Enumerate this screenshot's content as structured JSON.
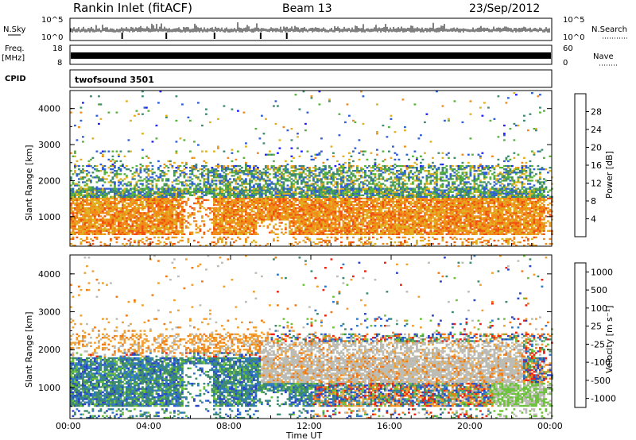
{
  "header": {
    "station": "Rankin Inlet (fitACF)",
    "beam": "Beam 13",
    "date": "23/Sep/2012"
  },
  "top_strips": {
    "nsky_label": "N.Sky",
    "nsky_ticks": [
      "10^5",
      "10^0"
    ],
    "nsearch_label": "N.Search",
    "freq_label": "Freq.",
    "freq_unit": "[MHz]",
    "freq_ticks": [
      "18",
      "8"
    ],
    "nave_label": "Nave",
    "nave_ticks": [
      "60",
      "0"
    ],
    "cpid_label": "CPID",
    "cpid_value": "twofsound 3501"
  },
  "colors": {
    "power": [
      "#1f1fff",
      "#2e5fd6",
      "#3e8a6e",
      "#56b23a",
      "#e0b020",
      "#f08a18",
      "#f05010",
      "#ee1a10"
    ],
    "velocity": [
      "#2a45c8",
      "#2f78c8",
      "#3e8a6e",
      "#6cc23a",
      "#bcbcb4",
      "#f0a030",
      "#f07a18",
      "#ee2010"
    ]
  },
  "chart_data": [
    {
      "type": "heatmap",
      "name": "power-panel",
      "ylabel": "Slant Range [km]",
      "xlabel": "Time UT",
      "x_ticks": [
        "00:00",
        "04:00",
        "08:00",
        "12:00",
        "16:00",
        "20:00",
        "00:00"
      ],
      "x_range_hours": [
        0,
        24
      ],
      "y_ticks": [
        1000,
        2000,
        3000,
        4000
      ],
      "y_range_km": [
        180,
        4500
      ],
      "colorbar_label": "Power [dB]",
      "colorbar_ticks": [
        "4",
        "8",
        "12",
        "16",
        "20",
        "24",
        "28"
      ],
      "colorbar_range": [
        0,
        32
      ]
    },
    {
      "type": "heatmap",
      "name": "velocity-panel",
      "ylabel": "Slant Range [km]",
      "xlabel": "Time UT",
      "x_ticks": [
        "00:00",
        "04:00",
        "08:00",
        "12:00",
        "16:00",
        "20:00",
        "00:00"
      ],
      "x_range_hours": [
        0,
        24
      ],
      "y_ticks": [
        1000,
        2000,
        3000,
        4000
      ],
      "y_range_km": [
        180,
        4500
      ],
      "colorbar_label": "Velocity [m s⁻¹]",
      "colorbar_ticks": [
        "1000",
        "500",
        "100",
        "25",
        "-25",
        "-100",
        "-500",
        "-1000"
      ]
    }
  ]
}
